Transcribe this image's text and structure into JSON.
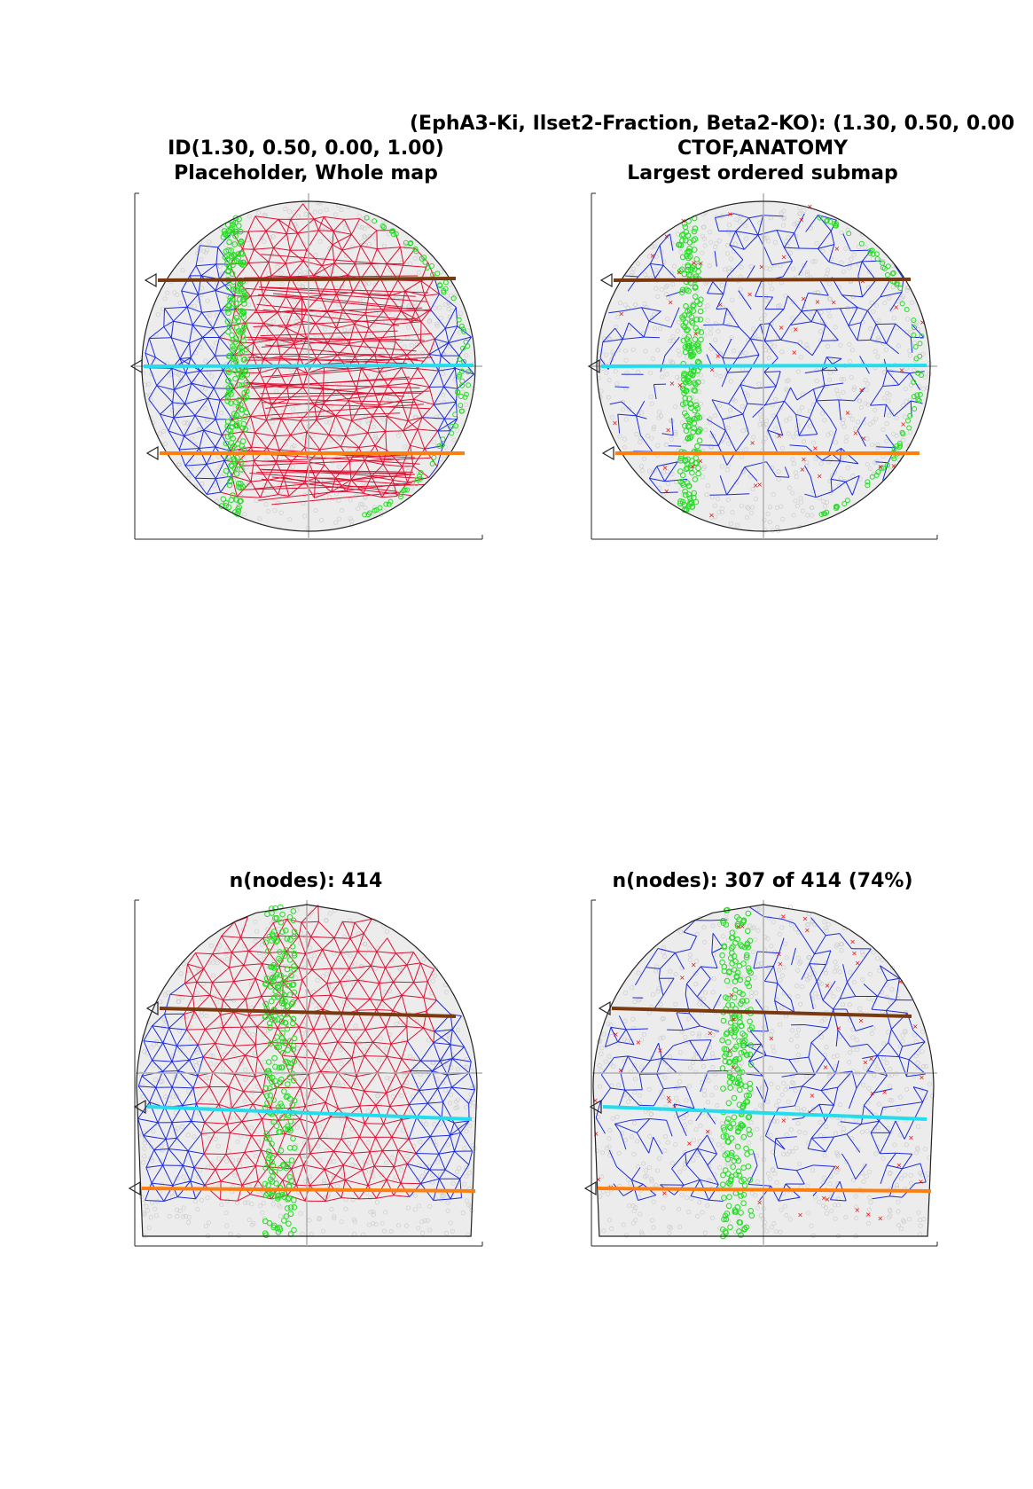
{
  "figure": {
    "suptitle": "(EphA3-Ki, Ilset2-Fraction, Beta2-KO): (1.30, 0.50, 0.00",
    "panels": [
      {
        "title_lines": [
          "ID(1.30, 0.50, 0.00, 1.00)",
          "Placeholder, Whole map"
        ],
        "shape": "disc",
        "mesh_color": "red-and-blue",
        "colors": {
          "mesh_primary": "#dd1133",
          "mesh_secondary": "#1c2bdc",
          "points": "#22dd22"
        }
      },
      {
        "title_lines": [
          "CTOF,ANATOMY",
          "Largest ordered submap"
        ],
        "shape": "disc",
        "mesh_color": "blue",
        "colors": {
          "mesh_primary": "#1c2bdc",
          "points": "#22dd22",
          "markers": "#dd1111"
        }
      },
      {
        "title_lines": [
          "n(nodes): 414"
        ],
        "shape": "dome",
        "mesh_color": "red-and-blue",
        "colors": {
          "mesh_primary": "#dd1133",
          "mesh_secondary": "#1c2bdc",
          "points": "#22dd22"
        }
      },
      {
        "title_lines": [
          "n(nodes): 307 of 414 (74%)"
        ],
        "shape": "dome",
        "mesh_color": "blue",
        "colors": {
          "mesh_primary": "#1c2bdc",
          "points": "#22dd22",
          "markers": "#dd1111"
        }
      }
    ],
    "line_colors": {
      "top": "#7a3a10",
      "middle": "#22ddee",
      "bottom": "#ff7f0e"
    }
  }
}
